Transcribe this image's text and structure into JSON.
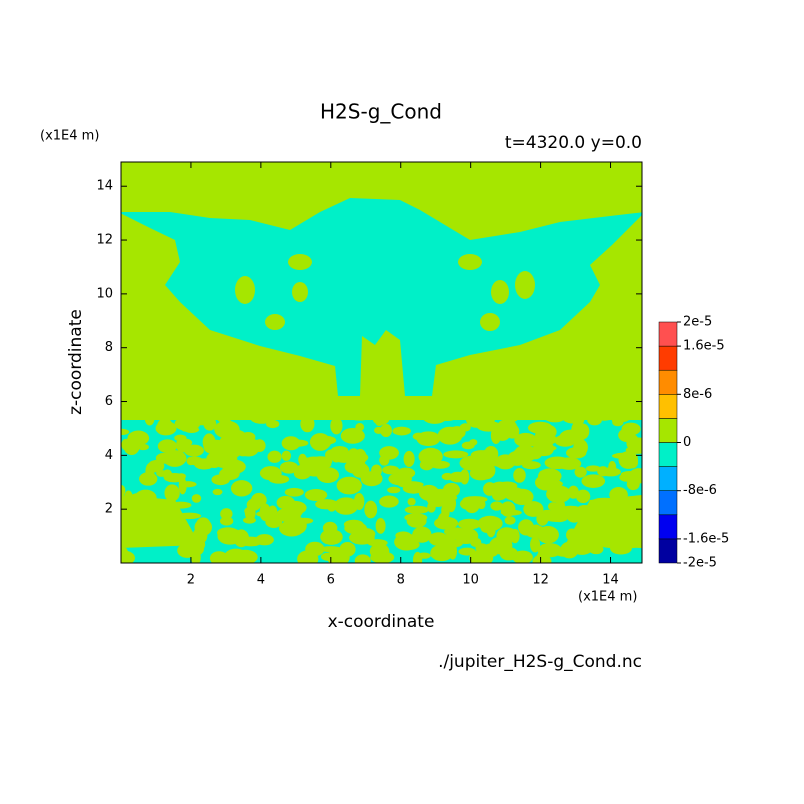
{
  "chart_data": {
    "type": "contour",
    "title": "H2S-g_Cond",
    "subtitle": "t=4320.0 y=0.0",
    "x_label": "x-coordinate",
    "y_label": "z-coordinate",
    "x_unit": "(x1E4 m)",
    "y_unit": "(x1E4 m)",
    "source": "./jupiter_H2S-g_Cond.nc",
    "xlim": [
      0,
      14.9
    ],
    "ylim": [
      0,
      14.9
    ],
    "xticks": [
      2,
      4,
      6,
      8,
      10,
      12,
      14
    ],
    "yticks": [
      2,
      4,
      6,
      8,
      10,
      12,
      14
    ],
    "clim": [
      -2e-05,
      2e-05
    ],
    "colors": [
      "#0000a0",
      "#0000f0",
      "#0070ff",
      "#00b0ff",
      "#00f0c8",
      "#a6e600",
      "#ffc000",
      "#ff8c00",
      "#ff3c00",
      "#ff5050"
    ],
    "cticks": [
      {
        "value": 2e-05,
        "label": "2e-5"
      },
      {
        "value": 1.6e-05,
        "label": "1.6e-5"
      },
      {
        "value": 8e-06,
        "label": "8e-6"
      },
      0,
      {
        "value": -8e-06,
        "label": "-8e-6"
      },
      {
        "value": -1.6e-05,
        "label": "-1.6e-5"
      },
      {
        "value": -2e-05,
        "label": "-2e-5"
      }
    ]
  }
}
